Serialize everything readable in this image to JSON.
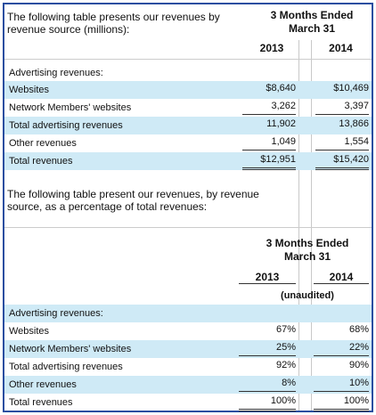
{
  "table1": {
    "intro": "The following table presents our revenues by revenue source (millions):",
    "header": "3 Months Ended March 31",
    "years": [
      "2013",
      "2014"
    ],
    "section": "Advertising revenues:",
    "rows": [
      [
        "Websites",
        "$8,640",
        "$10,469"
      ],
      [
        "Network Members' websites",
        "3,262",
        "3,397"
      ],
      [
        "Total advertising revenues",
        "11,902",
        "13,866"
      ],
      [
        "Other revenues",
        "1,049",
        "1,554"
      ],
      [
        "Total revenues",
        "$12,951",
        "$15,420"
      ]
    ]
  },
  "table2": {
    "intro": "The following table present our revenues, by revenue source, as a percentage of total revenues:",
    "header": "3 Months Ended March 31",
    "years": [
      "2013",
      "2014"
    ],
    "note": "(unaudited)",
    "section": "Advertising revenues:",
    "rows": [
      [
        "Websites",
        "67%",
        "68%"
      ],
      [
        "Network Members' websites",
        "25%",
        "22%"
      ],
      [
        "Total advertising revenues",
        "92%",
        "90%"
      ],
      [
        "Other revenues",
        "8%",
        "10%"
      ],
      [
        "Total revenues",
        "100%",
        "100%"
      ]
    ]
  }
}
